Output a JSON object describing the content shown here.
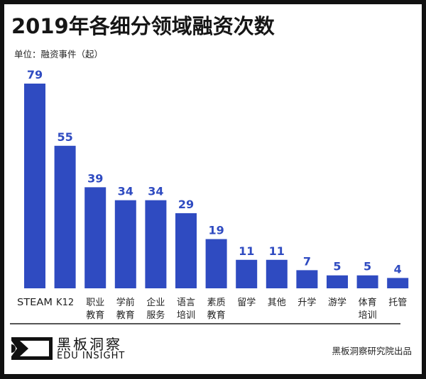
{
  "chart_data": {
    "type": "bar",
    "title": "2019年各细分领域融资次数",
    "unit_label": "单位：融资事件（起）",
    "categories": [
      "STEAM",
      "K12",
      "职业\n教育",
      "学前\n教育",
      "企业\n服务",
      "语言\n培训",
      "素质\n教育",
      "留学",
      "其他",
      "升学",
      "游学",
      "体育\n培训",
      "托管"
    ],
    "values": [
      79,
      55,
      39,
      34,
      34,
      29,
      19,
      11,
      11,
      7,
      5,
      5,
      4
    ],
    "ylim": [
      0,
      79
    ],
    "grid": false,
    "bar_color": "#2f4bc1",
    "label_color": "#2f4bc1"
  },
  "footer": {
    "brand_cn": "黑板洞察",
    "brand_en": "EDU INSIGHT",
    "credit": "黑板洞察研究院出品"
  }
}
